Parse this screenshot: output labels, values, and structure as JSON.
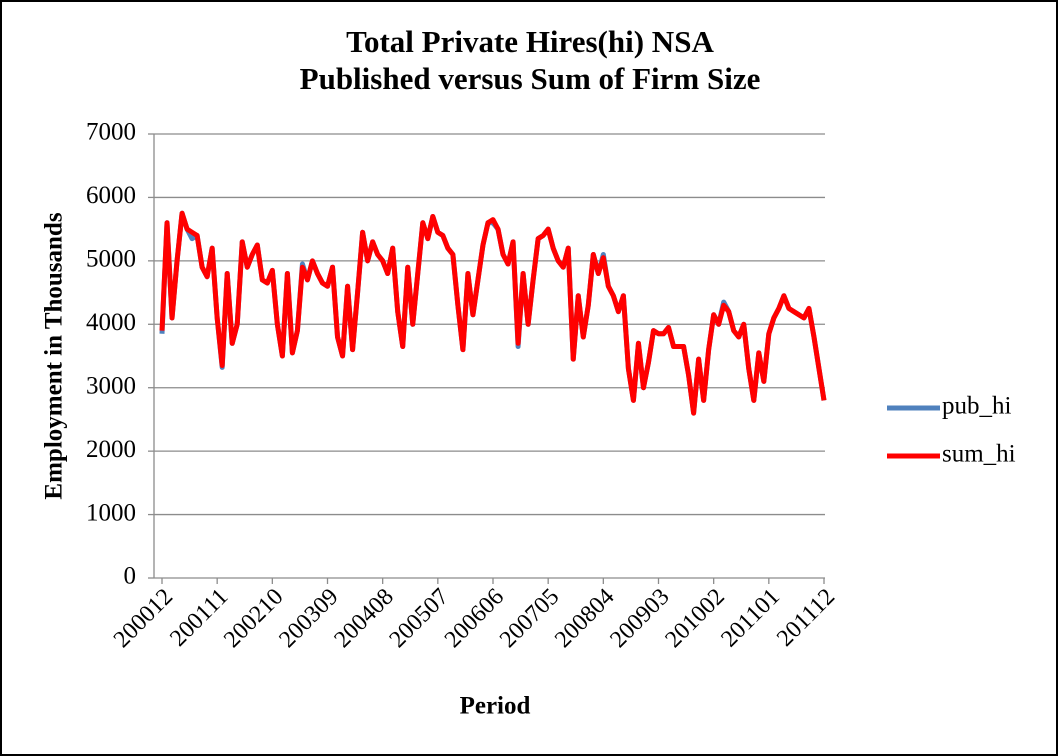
{
  "chart_data": {
    "type": "line",
    "title": "Total Private Hires(hi) NSA",
    "subtitle": "Published versus Sum of Firm Size",
    "y_label": "Employment  in Thousands",
    "x_label": "Period",
    "categories": [
      "200012",
      null,
      null,
      null,
      null,
      null,
      null,
      null,
      null,
      null,
      null,
      "200111",
      null,
      null,
      null,
      null,
      null,
      null,
      null,
      null,
      null,
      null,
      "200210",
      null,
      null,
      null,
      null,
      null,
      null,
      null,
      null,
      null,
      null,
      "200309",
      null,
      null,
      null,
      null,
      null,
      null,
      null,
      null,
      null,
      null,
      "200408",
      null,
      null,
      null,
      null,
      null,
      null,
      null,
      null,
      null,
      null,
      "200507",
      null,
      null,
      null,
      null,
      null,
      null,
      null,
      null,
      null,
      null,
      "200606",
      null,
      null,
      null,
      null,
      null,
      null,
      null,
      null,
      null,
      null,
      "200705",
      null,
      null,
      null,
      null,
      null,
      null,
      null,
      null,
      null,
      null,
      "200804",
      null,
      null,
      null,
      null,
      null,
      null,
      null,
      null,
      null,
      null,
      "200903",
      null,
      null,
      null,
      null,
      null,
      null,
      null,
      null,
      null,
      null,
      "201002",
      null,
      null,
      null,
      null,
      null,
      null,
      null,
      null,
      null,
      null,
      "201101",
      null,
      null,
      null,
      null,
      null,
      null,
      null,
      null,
      null,
      null,
      "201112"
    ],
    "series": [
      {
        "name": "pub_hi",
        "color": "#4f81bd",
        "values": [
          3850,
          5600,
          4100,
          5000,
          5750,
          5500,
          5350,
          5400,
          4900,
          4750,
          5200,
          4100,
          3320,
          4800,
          3700,
          4000,
          5300,
          4900,
          5100,
          5250,
          4700,
          4650,
          4850,
          4000,
          3500,
          4800,
          3550,
          3900,
          4950,
          4700,
          5000,
          4800,
          4650,
          4600,
          4900,
          3800,
          3500,
          4600,
          3600,
          4500,
          5450,
          5000,
          5300,
          5100,
          5000,
          4800,
          5200,
          4200,
          3650,
          4900,
          4000,
          4800,
          5600,
          5350,
          5700,
          5450,
          5400,
          5200,
          5100,
          4300,
          3600,
          4800,
          4150,
          4700,
          5250,
          5600,
          5600,
          5500,
          5100,
          4950,
          5300,
          3650,
          4800,
          4000,
          4700,
          5350,
          5400,
          5500,
          5200,
          5000,
          4900,
          5200,
          3450,
          4450,
          3800,
          4300,
          5100,
          4800,
          5100,
          4600,
          4450,
          4200,
          4450,
          3300,
          2800,
          3700,
          3000,
          3400,
          3900,
          3850,
          3850,
          3950,
          3650,
          3650,
          3650,
          3200,
          2600,
          3450,
          2800,
          3600,
          4150,
          4000,
          4350,
          4200,
          3900,
          3800,
          4000,
          3300,
          2800,
          3550,
          3100,
          3850,
          4100,
          4250,
          4450,
          4250,
          4200,
          4150,
          4100,
          4250,
          3800,
          3300,
          2800
        ]
      },
      {
        "name": "sum_hi",
        "color": "#ff0000",
        "values": [
          3900,
          5600,
          4100,
          5000,
          5750,
          5500,
          5450,
          5400,
          4900,
          4750,
          5200,
          4100,
          3350,
          4800,
          3700,
          4000,
          5300,
          4900,
          5100,
          5250,
          4700,
          4650,
          4850,
          4000,
          3500,
          4800,
          3550,
          3900,
          4900,
          4700,
          5000,
          4800,
          4650,
          4600,
          4900,
          3800,
          3500,
          4600,
          3600,
          4500,
          5450,
          5000,
          5300,
          5100,
          5000,
          4800,
          5200,
          4200,
          3650,
          4900,
          4000,
          4800,
          5600,
          5350,
          5700,
          5450,
          5400,
          5200,
          5100,
          4300,
          3600,
          4800,
          4150,
          4700,
          5250,
          5600,
          5650,
          5500,
          5100,
          4950,
          5300,
          3700,
          4800,
          4000,
          4700,
          5350,
          5400,
          5500,
          5200,
          5000,
          4900,
          5200,
          3450,
          4450,
          3800,
          4300,
          5100,
          4800,
          5050,
          4600,
          4450,
          4200,
          4450,
          3300,
          2800,
          3700,
          3000,
          3400,
          3900,
          3850,
          3850,
          3950,
          3650,
          3650,
          3650,
          3200,
          2600,
          3450,
          2800,
          3600,
          4150,
          4000,
          4300,
          4200,
          3900,
          3800,
          4000,
          3300,
          2800,
          3550,
          3100,
          3850,
          4100,
          4250,
          4450,
          4250,
          4200,
          4150,
          4100,
          4250,
          3800,
          3300,
          2800
        ]
      }
    ],
    "ylim": [
      0,
      7000
    ],
    "yticks": [
      0,
      1000,
      2000,
      3000,
      4000,
      5000,
      6000,
      7000
    ],
    "grid": true,
    "legend": "right"
  }
}
